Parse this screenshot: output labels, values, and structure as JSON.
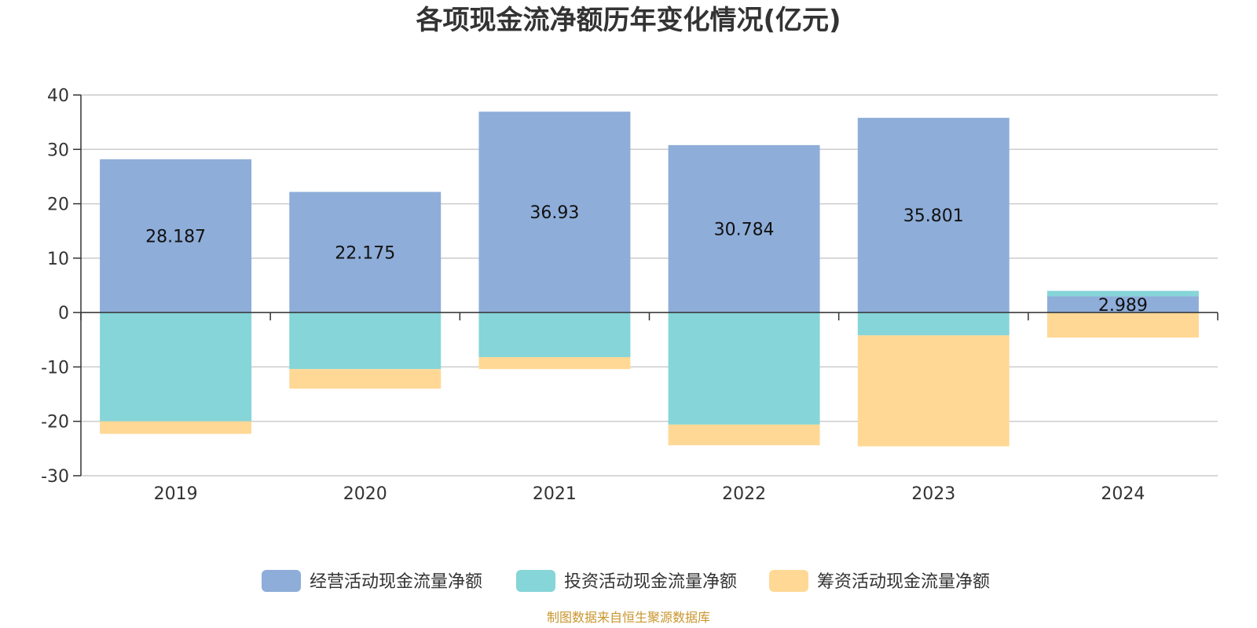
{
  "chart_data": {
    "type": "bar",
    "stacked": true,
    "title": "各项现金流净额历年变化情况(亿元)",
    "categories": [
      "2019",
      "2020",
      "2021",
      "2022",
      "2023",
      "2024"
    ],
    "series": [
      {
        "name": "经营活动现金流量净额",
        "color": "#8eadd9",
        "values": [
          28.187,
          22.175,
          36.93,
          30.784,
          35.801,
          2.989
        ]
      },
      {
        "name": "投资活动现金流量净额",
        "color": "#86d5d8",
        "values": [
          -20.0,
          -10.4,
          -8.2,
          -20.6,
          -4.2,
          1.0
        ]
      },
      {
        "name": "筹资活动现金流量净额",
        "color": "#ffd896",
        "values": [
          -2.3,
          -3.6,
          -2.2,
          -3.8,
          -20.4,
          -4.6
        ]
      }
    ],
    "data_labels": [
      "28.187",
      "22.175",
      "36.93",
      "30.784",
      "35.801",
      "2.989"
    ],
    "ylim": [
      -30,
      40
    ],
    "yticks": [
      "40",
      "30",
      "20",
      "10",
      "0",
      "-10",
      "-20",
      "-30"
    ],
    "grid": true,
    "legend": "bottom",
    "source": "制图数据来自恒生聚源数据库"
  }
}
